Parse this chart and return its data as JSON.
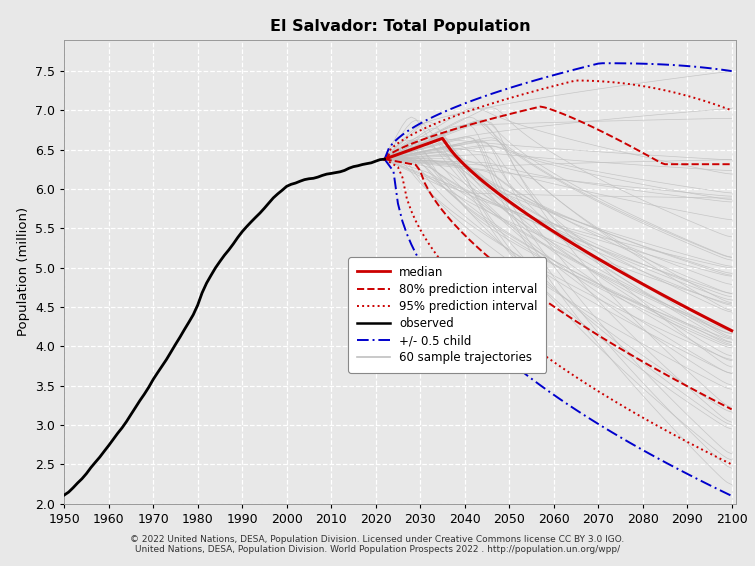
{
  "title": "El Salvador: Total Population",
  "ylabel": "Population (million)",
  "xlabel": "",
  "footnote1": "© 2022 United Nations, DESA, Population Division. Licensed under Creative Commons license CC BY 3.0 IGO.",
  "footnote2": "United Nations, DESA, Population Division. World Population Prospects 2022 . http://population.un.org/wpp/",
  "ylim": [
    2.0,
    7.9
  ],
  "xlim": [
    1950,
    2101
  ],
  "yticks": [
    2.0,
    2.5,
    3.0,
    3.5,
    4.0,
    4.5,
    5.0,
    5.5,
    6.0,
    6.5,
    7.0,
    7.5
  ],
  "xticks": [
    1950,
    1960,
    1970,
    1980,
    1990,
    2000,
    2010,
    2020,
    2030,
    2040,
    2050,
    2060,
    2070,
    2080,
    2090,
    2100
  ],
  "bg_color": "#e8e8e8",
  "grid_color": "#ffffff",
  "observed_color": "#000000",
  "median_color": "#cc0000",
  "pi80_color": "#cc0000",
  "pi95_color": "#cc0000",
  "half_child_color": "#0000cc",
  "sample_color": "#c0c0c0"
}
